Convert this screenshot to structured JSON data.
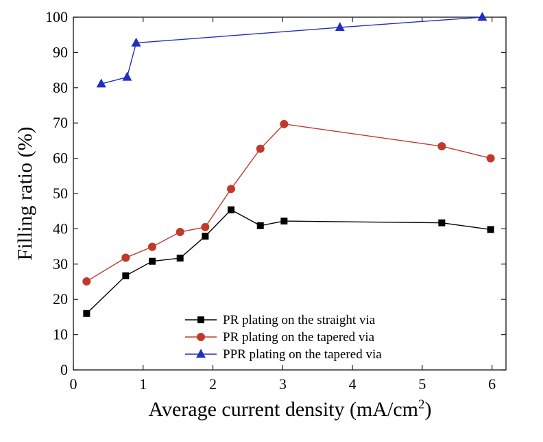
{
  "chart_data": {
    "type": "line",
    "xlabel": "Average current density (mA/cm",
    "xlabel_sup": "2",
    "xlabel_close": ")",
    "ylabel": "Filling ratio (%)",
    "xlim": [
      0,
      6.2
    ],
    "ylim": [
      0,
      100
    ],
    "xticks": [
      0,
      1,
      2,
      3,
      4,
      5,
      6
    ],
    "yticks": [
      0,
      10,
      20,
      30,
      40,
      50,
      60,
      70,
      80,
      90,
      100
    ],
    "grid": false,
    "legend_position": "bottom-center",
    "series": [
      {
        "name": "PR plating on the straight via",
        "color": "#000000",
        "marker": "square",
        "x": [
          0.19,
          0.75,
          1.13,
          1.53,
          1.89,
          2.26,
          2.68,
          3.02,
          5.28,
          5.98
        ],
        "y": [
          16,
          26.7,
          30.8,
          31.7,
          37.9,
          45.4,
          40.9,
          42.2,
          41.7,
          39.8
        ]
      },
      {
        "name": "PR plating on the tapered via",
        "color": "#c0392b",
        "marker": "circle",
        "x": [
          0.19,
          0.75,
          1.13,
          1.53,
          1.89,
          2.26,
          2.68,
          3.02,
          5.28,
          5.98
        ],
        "y": [
          25.1,
          31.8,
          34.9,
          39.1,
          40.5,
          51.3,
          62.7,
          69.7,
          63.4,
          60
        ]
      },
      {
        "name": "PPR plating on the tapered via",
        "color": "#1f2fbf",
        "marker": "triangle",
        "x": [
          0.4,
          0.77,
          0.9,
          3.82,
          5.86
        ],
        "y": [
          81.1,
          83,
          92.7,
          97.1,
          100
        ]
      }
    ]
  }
}
